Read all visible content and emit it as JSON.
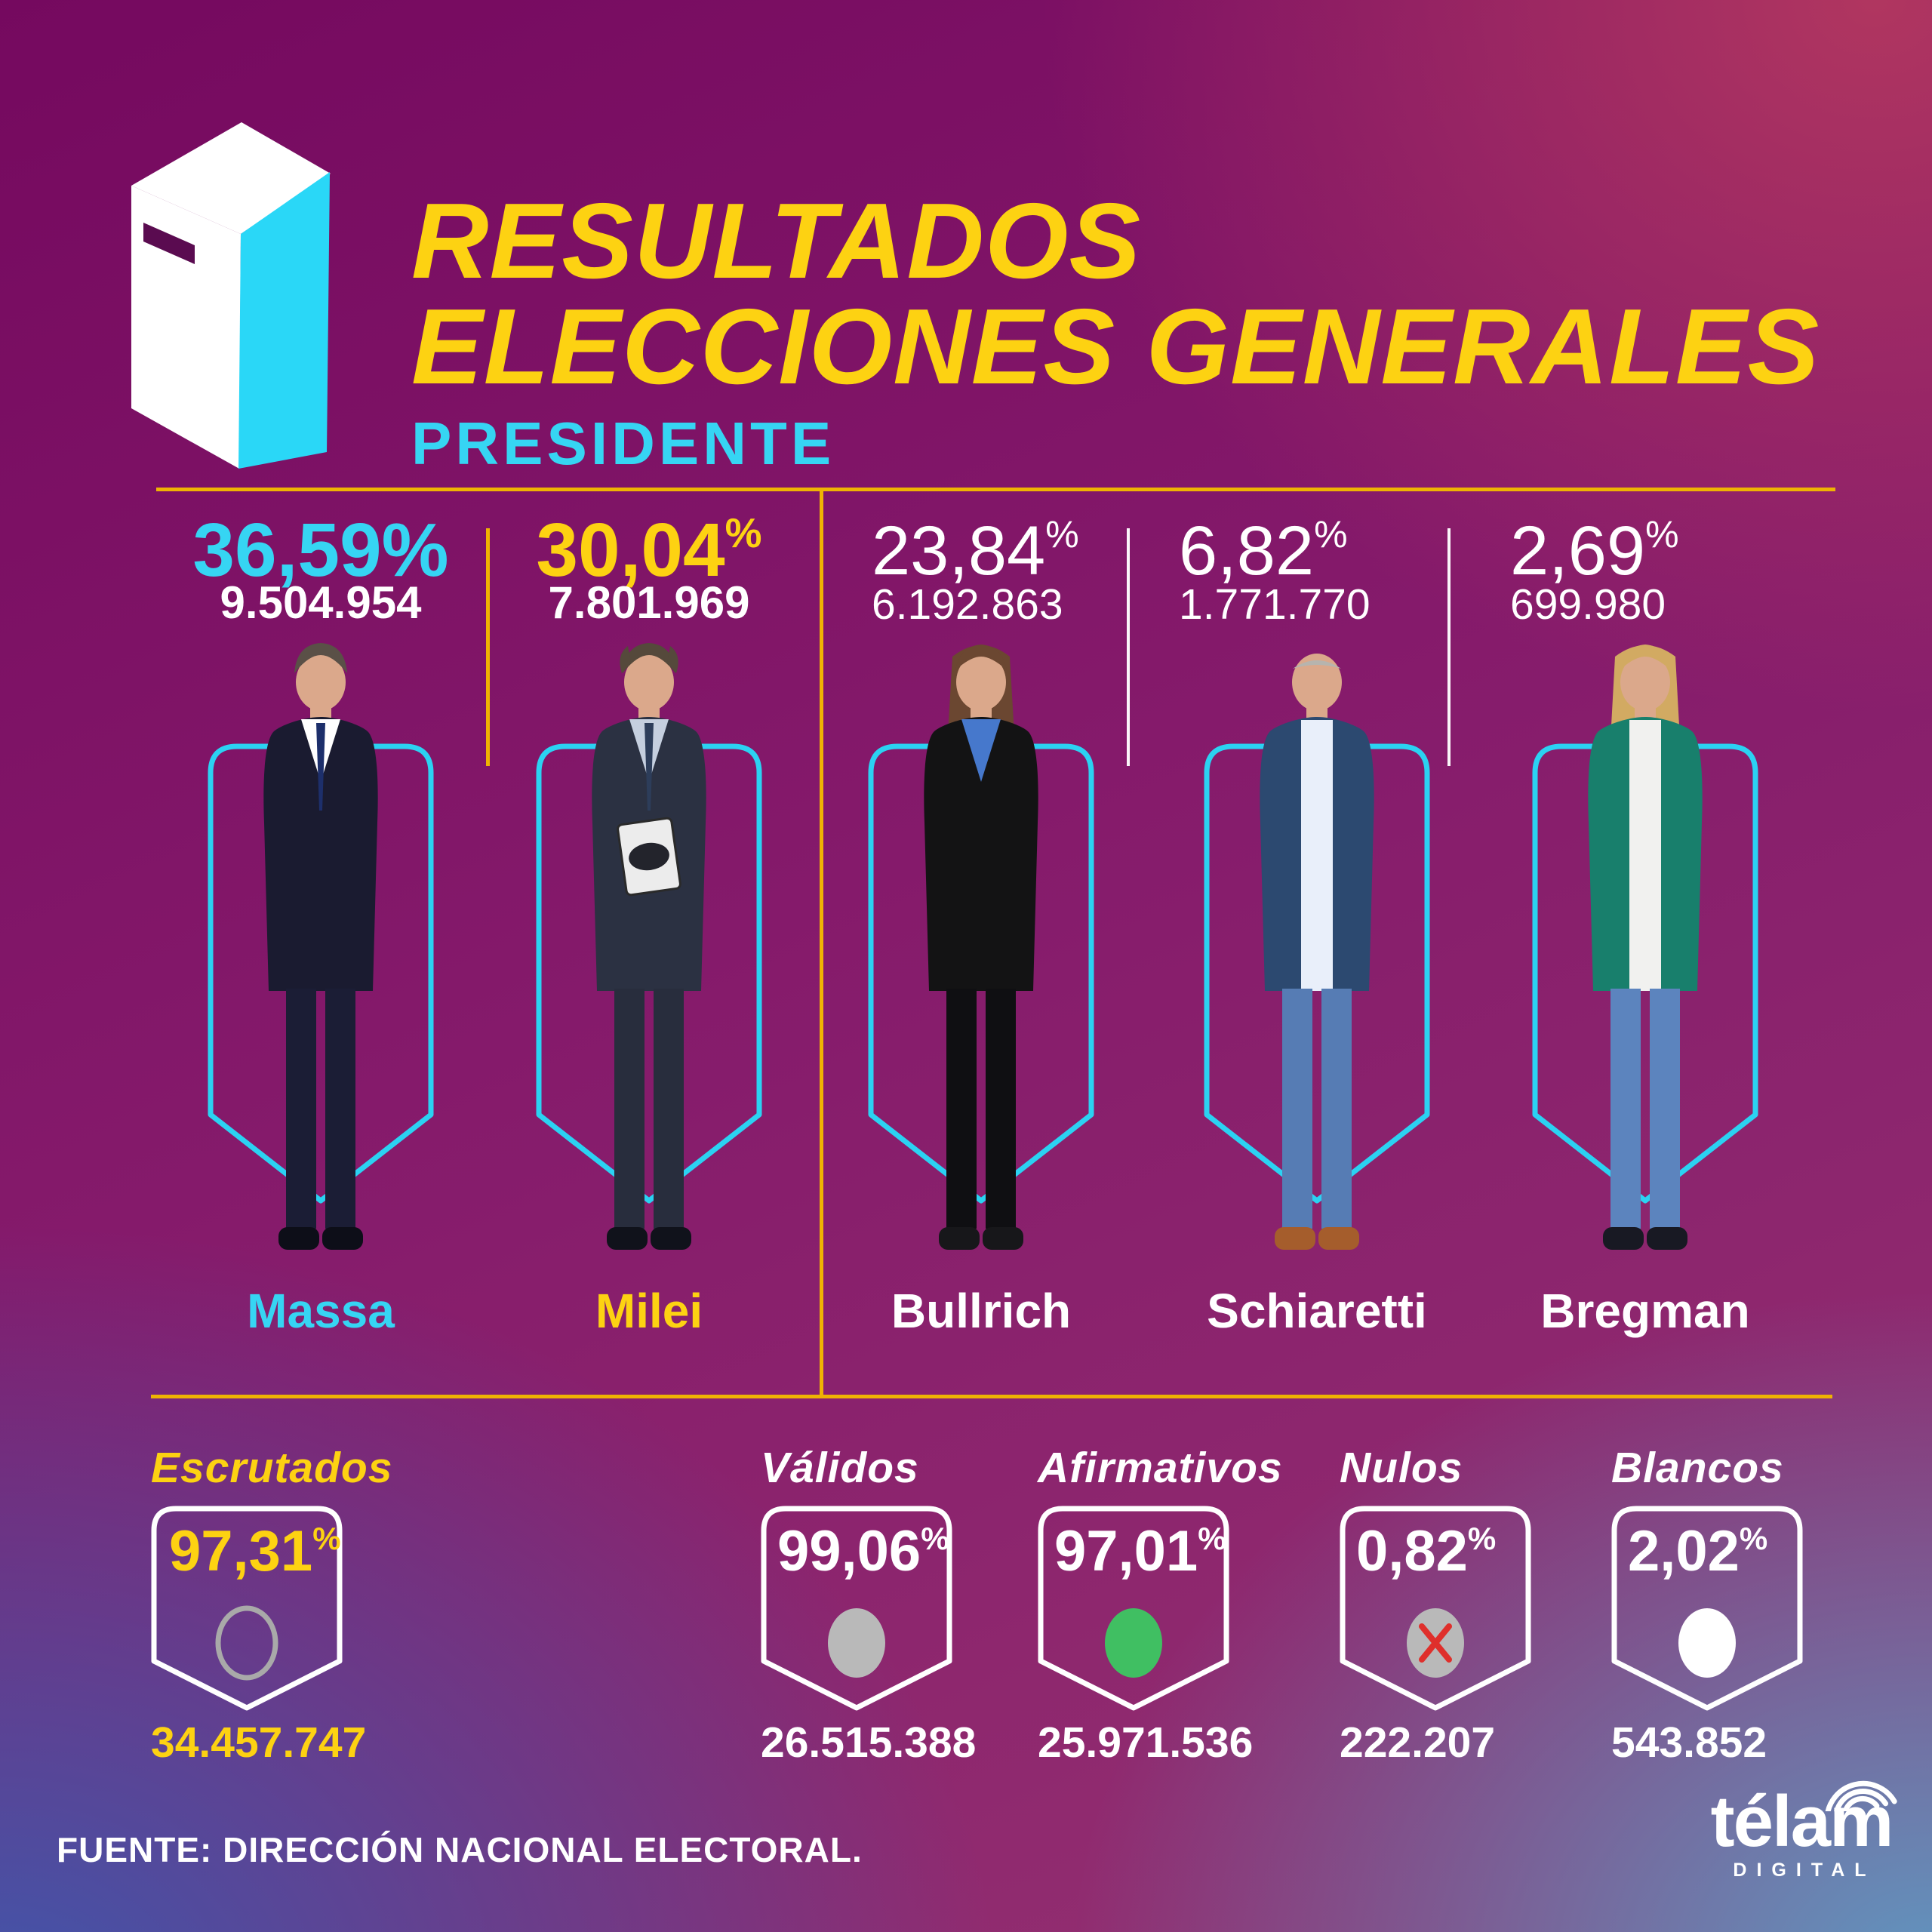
{
  "colors": {
    "yellow_text": "#fdd212",
    "yellow_line": "#efb303",
    "cyan": "#36d5f3",
    "white": "#ffffff",
    "green": "#40bf62",
    "gray": "#b9b9b9",
    "red_x": "#df2f2b",
    "skin": "#dba88b",
    "shield_cyan": "#2bd2f2",
    "badge_white": "#ffffff",
    "slot": "#5a0b50",
    "box_side": "#2ad7f7"
  },
  "header": {
    "title_line1": "RESULTADOS",
    "title_line2": "ELECCIONES GENERALES",
    "subtitle": "PRESIDENTE"
  },
  "candidates": [
    {
      "name": "Massa",
      "pct": "36,59",
      "sup": "%",
      "votes": "9.504.954",
      "person": {
        "style": "short",
        "hair": "#5a5047",
        "jacket": "#1a1b30",
        "shirt": "#ffffff",
        "tie": "#1d2f6b",
        "pants": "#1b1d35",
        "shoes": "#0d0e18"
      }
    },
    {
      "name": "Milei",
      "pct": "30,04",
      "sup": "%",
      "votes": "7.801.969",
      "person": {
        "style": "messy",
        "hair": "#55493b",
        "jacket": "#2b3142",
        "shirt": "#c5cfdf",
        "tie": "#2d3d5a",
        "pants": "#282d3d",
        "shoes": "#10121b",
        "notebook": true
      }
    },
    {
      "name": "Bullrich",
      "pct": "23,84",
      "sup": "%",
      "votes": "6.192.863",
      "person": {
        "style": "bob",
        "hair": "#6b4731",
        "jacket": "#131314",
        "shirt": "#4678cc",
        "pants": "#0f0f12",
        "shoes": "#17171a"
      }
    },
    {
      "name": "Schiaretti",
      "pct": "6,82",
      "sup": "%",
      "votes": "1.771.770",
      "person": {
        "style": "bald",
        "hair": "#b7b4ae",
        "jacket": "#2c4970",
        "shirt": "#e9effa",
        "pants": "#567cb4",
        "shoes": "#a55d2c",
        "open": true
      }
    },
    {
      "name": "Bregman",
      "pct": "2,69",
      "sup": "%",
      "votes": "699.980",
      "person": {
        "style": "long",
        "hair": "#d2aa62",
        "jacket": "#187f6c",
        "shirt": "#f1f1ef",
        "pants": "#5c84be",
        "shoes": "#181923",
        "open": true
      }
    }
  ],
  "stats": [
    {
      "label": "Escrutados",
      "pct": "97,31",
      "sup": "%",
      "value": "34.457.747",
      "icon": "circle-outline"
    },
    {
      "label": "Válidos",
      "pct": "99,06",
      "sup": "%",
      "value": "26.515.388",
      "icon": "circle-gray"
    },
    {
      "label": "Afirmativos",
      "pct": "97,01",
      "sup": "%",
      "value": "25.971.536",
      "icon": "circle-green"
    },
    {
      "label": "Nulos",
      "pct": "0,82",
      "sup": "%",
      "value": "222.207",
      "icon": "circle-x"
    },
    {
      "label": "Blancos",
      "pct": "2,02",
      "sup": "%",
      "value": "543.852",
      "icon": "circle-white"
    }
  ],
  "footer": {
    "source": "FUENTE: DIRECCIÓN NACIONAL ELECTORAL.",
    "brand": "télam",
    "brand_sub": "DIGITAL"
  },
  "chart_data": {
    "type": "table",
    "title": "Resultados Elecciones Generales — Presidente",
    "categories": [
      "Massa",
      "Milei",
      "Bullrich",
      "Schiaretti",
      "Bregman"
    ],
    "series": [
      {
        "name": "Porcentaje",
        "values": [
          36.59,
          30.04,
          23.84,
          6.82,
          2.69
        ]
      },
      {
        "name": "Votos",
        "values": [
          9504954,
          7801969,
          6192863,
          1771770,
          699980
        ]
      }
    ],
    "totals": {
      "escrutados_pct": 97.31,
      "escrutados_votos": 34457747,
      "validos_pct": 99.06,
      "validos_votos": 26515388,
      "afirmativos_pct": 97.01,
      "afirmativos_votos": 25971536,
      "nulos_pct": 0.82,
      "nulos_votos": 222207,
      "blancos_pct": 2.02,
      "blancos_votos": 543852
    },
    "source": "Dirección Nacional Electoral",
    "legend_position": "none",
    "grid": false
  }
}
